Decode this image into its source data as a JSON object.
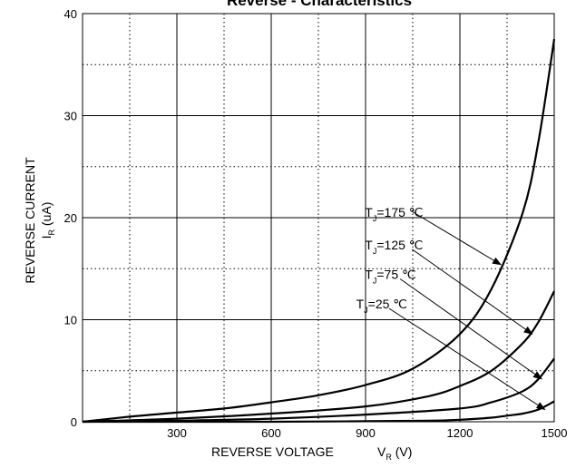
{
  "chart_data": {
    "type": "line",
    "title": "Reverse - Characteristics",
    "xlabel": "REVERSE VOLTAGE",
    "xlabel_symbol": "V",
    "xlabel_symbol_sub": "R",
    "xlabel_unit": "(V)",
    "ylabel": "REVERSE CURRENT",
    "ylabel_symbol": "I",
    "ylabel_symbol_sub": "R",
    "ylabel_unit": "(uA)",
    "xlim": [
      0,
      1500
    ],
    "ylim": [
      0,
      40
    ],
    "x_ticks": [
      300,
      600,
      900,
      1200,
      1500
    ],
    "y_ticks": [
      0,
      10,
      20,
      30,
      40
    ],
    "x_minor_dotted": [
      150,
      450,
      750,
      1050,
      1350
    ],
    "y_minor_dotted": [
      5,
      15,
      25,
      35
    ],
    "grid": true,
    "series": [
      {
        "name": "T_J=175 ℃",
        "label_main": "T",
        "label_sub": "J",
        "label_rest": "=175 ℃",
        "x": [
          0,
          150,
          300,
          450,
          600,
          750,
          900,
          1050,
          1200,
          1300,
          1400,
          1450,
          1500
        ],
        "y": [
          0,
          0.5,
          0.9,
          1.3,
          1.9,
          2.6,
          3.6,
          5.2,
          8.6,
          13.0,
          20.5,
          27.5,
          37.5
        ]
      },
      {
        "name": "T_J=125 ℃",
        "label_main": "T",
        "label_sub": "J",
        "label_rest": "=125 ℃",
        "x": [
          0,
          300,
          600,
          900,
          1100,
          1200,
          1300,
          1400,
          1450,
          1500
        ],
        "y": [
          0,
          0.3,
          0.8,
          1.5,
          2.5,
          3.5,
          5.0,
          7.7,
          9.8,
          12.8
        ]
      },
      {
        "name": "T_J=75 ℃",
        "label_main": "T",
        "label_sub": "J",
        "label_rest": "=75 ℃",
        "x": [
          0,
          300,
          600,
          900,
          1200,
          1300,
          1400,
          1450,
          1500
        ],
        "y": [
          0,
          0.1,
          0.3,
          0.7,
          1.3,
          1.9,
          3.0,
          4.2,
          6.2
        ]
      },
      {
        "name": "T_J=25 ℃",
        "label_main": "T",
        "label_sub": "J",
        "label_rest": "=25 ℃",
        "x": [
          0,
          600,
          900,
          1100,
          1200,
          1300,
          1350,
          1400,
          1450,
          1500
        ],
        "y": [
          0,
          0,
          0.05,
          0.1,
          0.2,
          0.4,
          0.6,
          0.8,
          1.2,
          2.0
        ]
      }
    ],
    "annotations": [
      {
        "series": 0,
        "text_x": 898,
        "text_y": 20.1,
        "arrow_from": [
          1048,
          20.6
        ],
        "arrow_to": [
          1330,
          15.4
        ]
      },
      {
        "series": 1,
        "text_x": 898,
        "text_y": 16.9,
        "arrow_from": [
          1048,
          16.9
        ],
        "arrow_to": [
          1430,
          8.6
        ]
      },
      {
        "series": 2,
        "text_x": 898,
        "text_y": 14.0,
        "arrow_from": [
          1010,
          14.0
        ],
        "arrow_to": [
          1460,
          4.2
        ]
      },
      {
        "series": 3,
        "text_x": 870,
        "text_y": 11.1,
        "arrow_from": [
          975,
          11.1
        ],
        "arrow_to": [
          1470,
          1.2
        ]
      }
    ]
  }
}
